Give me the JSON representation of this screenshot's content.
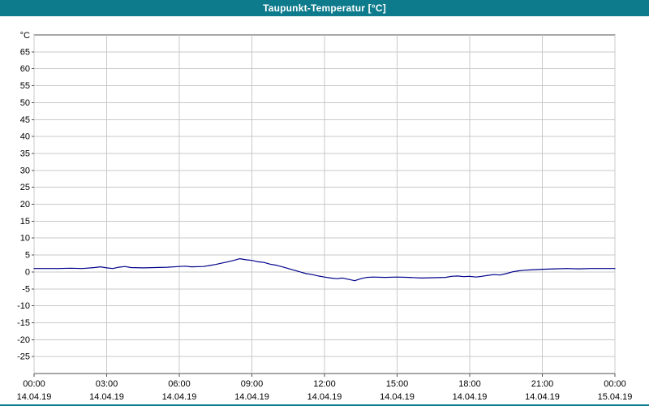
{
  "window": {
    "title": "Taupunkt-Temperatur [°C]"
  },
  "colors": {
    "titlebar_bg": "#0d7b8c",
    "title_text": "#ffffff",
    "plot_bg": "#ffffff",
    "plot_border": "#505050",
    "grid": "#c9c9c9",
    "tick_text": "#000000",
    "line": "#00008b"
  },
  "chart_data": {
    "type": "line",
    "title": "Taupunkt-Temperatur [°C]",
    "xlabel": "",
    "ylabel": "°C",
    "ylim": [
      -30,
      70
    ],
    "y_ticks": [
      -25,
      -20,
      -15,
      -10,
      -5,
      0,
      5,
      10,
      15,
      20,
      25,
      30,
      35,
      40,
      45,
      50,
      55,
      60,
      65
    ],
    "x_hours_range": [
      0,
      24
    ],
    "x_tick_step_hours": 3,
    "x_ticks": [
      {
        "time": "00:00",
        "date": "14.04.19"
      },
      {
        "time": "03:00",
        "date": "14.04.19"
      },
      {
        "time": "06:00",
        "date": "14.04.19"
      },
      {
        "time": "09:00",
        "date": "14.04.19"
      },
      {
        "time": "12:00",
        "date": "14.04.19"
      },
      {
        "time": "15:00",
        "date": "14.04.19"
      },
      {
        "time": "18:00",
        "date": "14.04.19"
      },
      {
        "time": "21:00",
        "date": "14.04.19"
      },
      {
        "time": "00:00",
        "date": "15.04.19"
      }
    ],
    "grid": true,
    "legend_position": "none",
    "series": [
      {
        "name": "Taupunkt-Temperatur",
        "color": "#00008b",
        "x": [
          0,
          0.5,
          1,
          1.5,
          2,
          2.5,
          2.75,
          3,
          3.25,
          3.5,
          3.75,
          4,
          4.5,
          5,
          5.5,
          6,
          6.25,
          6.5,
          7,
          7.25,
          7.5,
          7.75,
          8,
          8.25,
          8.5,
          8.75,
          9,
          9.25,
          9.5,
          9.75,
          10,
          10.25,
          10.5,
          10.75,
          11,
          11.25,
          11.5,
          11.75,
          12,
          12.25,
          12.5,
          12.75,
          13,
          13.25,
          13.5,
          13.75,
          14,
          14.5,
          15,
          15.5,
          16,
          16.5,
          17,
          17.25,
          17.5,
          17.75,
          18,
          18.25,
          18.5,
          18.75,
          19,
          19.25,
          19.5,
          19.75,
          20,
          20.25,
          20.5,
          21,
          21.5,
          22,
          22.5,
          23,
          23.5,
          24
        ],
        "values": [
          1.0,
          1.0,
          1.0,
          1.1,
          1.0,
          1.3,
          1.5,
          1.2,
          1.0,
          1.4,
          1.6,
          1.3,
          1.2,
          1.3,
          1.4,
          1.6,
          1.7,
          1.5,
          1.6,
          1.9,
          2.2,
          2.6,
          3.0,
          3.4,
          3.9,
          3.6,
          3.4,
          3.0,
          2.8,
          2.3,
          2.0,
          1.5,
          1.0,
          0.5,
          0.0,
          -0.5,
          -0.8,
          -1.2,
          -1.5,
          -1.8,
          -2.0,
          -1.8,
          -2.2,
          -2.6,
          -2.0,
          -1.6,
          -1.5,
          -1.6,
          -1.5,
          -1.6,
          -1.8,
          -1.7,
          -1.6,
          -1.3,
          -1.2,
          -1.4,
          -1.3,
          -1.5,
          -1.3,
          -1.0,
          -0.8,
          -0.9,
          -0.5,
          0.0,
          0.3,
          0.5,
          0.6,
          0.8,
          0.9,
          1.0,
          0.9,
          1.0,
          1.0,
          1.0
        ]
      }
    ]
  }
}
